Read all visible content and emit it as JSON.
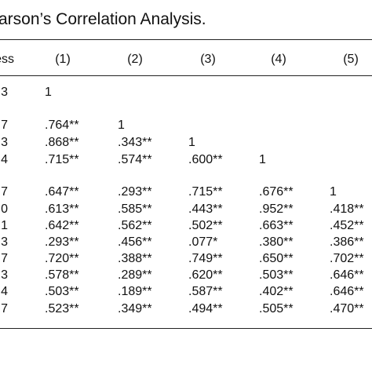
{
  "header": {
    "title": "arson’s Correlation Analysis."
  },
  "table": {
    "columns": [
      "ess",
      "(1)",
      "(2)",
      "(3)",
      "(4)",
      "(5)"
    ],
    "rows": [
      [
        "3",
        "1"
      ],
      [
        "7",
        ".764**",
        "1"
      ],
      [
        "3",
        ".868**",
        ".343**",
        "1"
      ],
      [
        "4",
        ".715**",
        ".574**",
        ".600**",
        "1"
      ],
      [
        "7",
        ".647**",
        ".293**",
        ".715**",
        ".676**",
        "1"
      ],
      [
        "0",
        ".613**",
        ".585**",
        ".443**",
        ".952**",
        ".418**"
      ],
      [
        "1",
        ".642**",
        ".562**",
        ".502**",
        ".663**",
        ".452**"
      ],
      [
        "3",
        ".293**",
        ".456**",
        ".077*",
        ".380**",
        ".386**"
      ],
      [
        "7",
        ".720**",
        ".388**",
        ".749**",
        ".650**",
        ".702**"
      ],
      [
        "3",
        ".578**",
        ".289**",
        ".620**",
        ".503**",
        ".646**"
      ],
      [
        "4",
        ".503**",
        ".189**",
        ".587**",
        ".402**",
        ".646**"
      ],
      [
        "7",
        ".523**",
        ".349**",
        ".494**",
        ".505**",
        ".470**"
      ]
    ]
  }
}
